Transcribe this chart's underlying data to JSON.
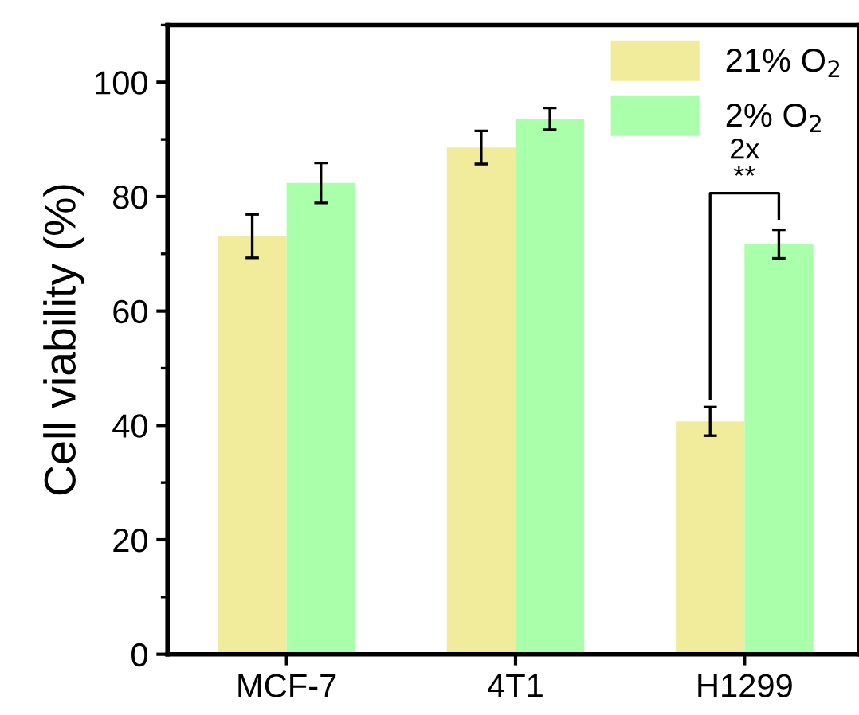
{
  "chart_data": {
    "type": "bar",
    "ylabel": "Cell viability (%)",
    "categories": [
      "MCF-7",
      "4T1",
      "H1299"
    ],
    "series": [
      {
        "name": "21% O$_{2}$",
        "color": "#f0ec9c",
        "values": [
          73.1,
          88.6,
          40.7
        ],
        "errors": [
          3.8,
          2.9,
          2.5
        ]
      },
      {
        "name": "2% O$_{2}$",
        "color": "#aaffaa",
        "values": [
          82.4,
          93.6,
          71.7
        ],
        "errors": [
          3.5,
          1.9,
          2.5
        ]
      }
    ],
    "ylim": [
      0,
      110
    ],
    "yticks": [
      0,
      20,
      40,
      60,
      80,
      100
    ],
    "legend": "top right",
    "grid": false,
    "annotations": [
      "2x",
      "**"
    ]
  }
}
